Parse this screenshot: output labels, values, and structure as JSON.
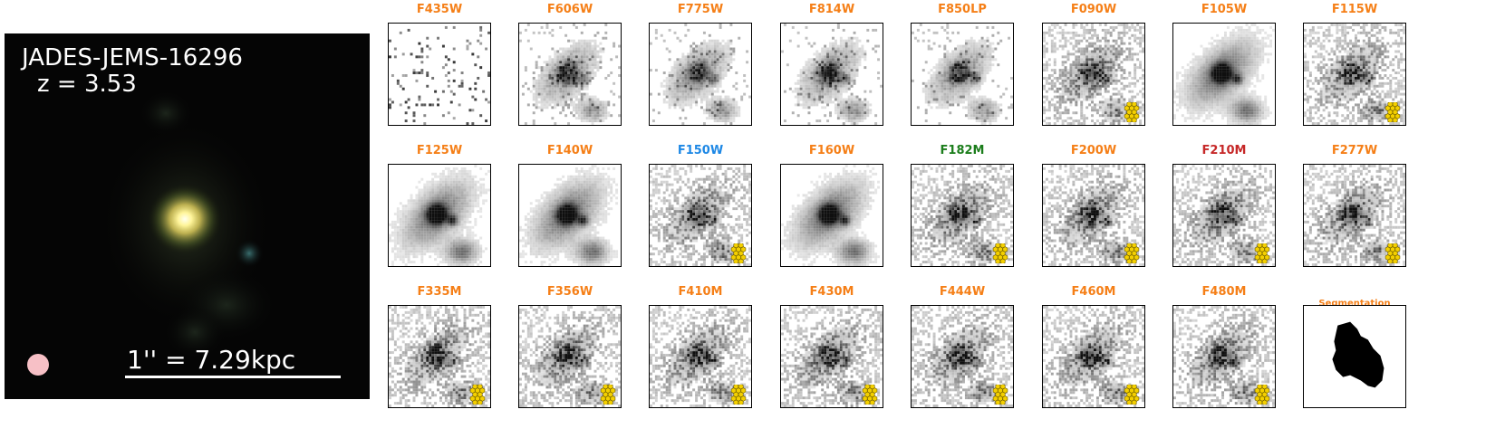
{
  "object": {
    "name": "JADES-JEMS-16296",
    "redshift_label": "z = 3.53",
    "scale_label": "1'' = 7.29kpc"
  },
  "colors": {
    "default_title": "#f57f17",
    "F150W": "#1e88e5",
    "F182M": "#1b7d1b",
    "F210M": "#c62828",
    "psf_marker": "#f7c0c6",
    "jwst_icon": "#f4d000"
  },
  "panels": [
    {
      "label": "F435W",
      "color": "#f57f17",
      "jwst": false,
      "style": "noise"
    },
    {
      "label": "F606W",
      "color": "#f57f17",
      "jwst": false,
      "style": "sparse"
    },
    {
      "label": "F775W",
      "color": "#f57f17",
      "jwst": false,
      "style": "sparse"
    },
    {
      "label": "F814W",
      "color": "#f57f17",
      "jwst": false,
      "style": "sparse"
    },
    {
      "label": "F850LP",
      "color": "#f57f17",
      "jwst": false,
      "style": "sparse"
    },
    {
      "label": "F090W",
      "color": "#f57f17",
      "jwst": true,
      "style": "dense"
    },
    {
      "label": "F105W",
      "color": "#f57f17",
      "jwst": false,
      "style": "smooth"
    },
    {
      "label": "F115W",
      "color": "#f57f17",
      "jwst": true,
      "style": "dense"
    },
    {
      "label": "F125W",
      "color": "#f57f17",
      "jwst": false,
      "style": "smooth"
    },
    {
      "label": "F140W",
      "color": "#f57f17",
      "jwst": false,
      "style": "smooth"
    },
    {
      "label": "F150W",
      "color": "#1e88e5",
      "jwst": true,
      "style": "dense"
    },
    {
      "label": "F160W",
      "color": "#f57f17",
      "jwst": false,
      "style": "smooth"
    },
    {
      "label": "F182M",
      "color": "#1b7d1b",
      "jwst": true,
      "style": "dense"
    },
    {
      "label": "F200W",
      "color": "#f57f17",
      "jwst": true,
      "style": "dense"
    },
    {
      "label": "F210M",
      "color": "#c62828",
      "jwst": true,
      "style": "dense"
    },
    {
      "label": "F277W",
      "color": "#f57f17",
      "jwst": true,
      "style": "dense"
    },
    {
      "label": "F335M",
      "color": "#f57f17",
      "jwst": true,
      "style": "dense"
    },
    {
      "label": "F356W",
      "color": "#f57f17",
      "jwst": true,
      "style": "dense"
    },
    {
      "label": "F410M",
      "color": "#f57f17",
      "jwst": true,
      "style": "dense"
    },
    {
      "label": "F430M",
      "color": "#f57f17",
      "jwst": true,
      "style": "dense"
    },
    {
      "label": "F444W",
      "color": "#f57f17",
      "jwst": true,
      "style": "dense"
    },
    {
      "label": "F460M",
      "color": "#f57f17",
      "jwst": true,
      "style": "dense"
    },
    {
      "label": "F480M",
      "color": "#f57f17",
      "jwst": true,
      "style": "dense"
    },
    {
      "label": "Segmentation",
      "color": "#f57f17",
      "jwst": false,
      "style": "segmentation"
    }
  ],
  "icons": {
    "jwst": "jwst-mirror-icon"
  }
}
